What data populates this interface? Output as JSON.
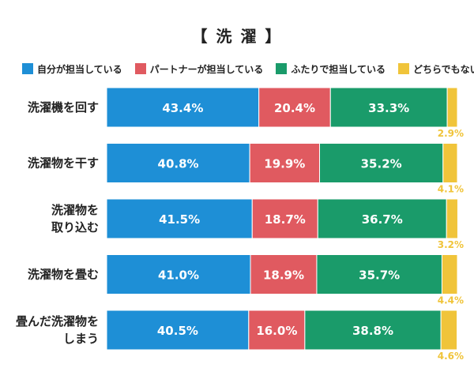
{
  "title": "【 洗 濯 】",
  "legend": [
    {
      "label": "自分が担当している",
      "color": "#1e8fd6"
    },
    {
      "label": "パートナーが担当している",
      "color": "#e05a60"
    },
    {
      "label": "ふたりで担当している",
      "color": "#1a9b6a"
    },
    {
      "label": "どちらでもない",
      "color": "#f0c43a"
    }
  ],
  "chart_data": {
    "type": "bar",
    "orientation": "horizontal",
    "stacked": true,
    "categories": [
      [
        "洗濯機を回す"
      ],
      [
        "洗濯物を干す"
      ],
      [
        "洗濯物を",
        "取り込む"
      ],
      [
        "洗濯物を畳む"
      ],
      [
        "畳んだ洗濯物を",
        "しまう"
      ]
    ],
    "series": [
      {
        "name": "自分が担当している",
        "values": [
          43.4,
          40.8,
          41.5,
          41.0,
          40.5
        ],
        "labels": [
          "43.4%",
          "40.8%",
          "41.5%",
          "41.0%",
          "40.5%"
        ]
      },
      {
        "name": "パートナーが担当している",
        "values": [
          20.4,
          19.9,
          18.7,
          18.9,
          16.0
        ],
        "labels": [
          "20.4%",
          "19.9%",
          "18.7%",
          "18.9%",
          "16.0%"
        ]
      },
      {
        "name": "ふたりで担当している",
        "values": [
          33.3,
          35.2,
          36.7,
          35.7,
          38.8
        ],
        "labels": [
          "33.3%",
          "35.2%",
          "36.7%",
          "35.7%",
          "38.8%"
        ]
      },
      {
        "name": "どちらでもない",
        "values": [
          2.9,
          4.1,
          3.2,
          4.4,
          4.6
        ],
        "labels": [
          "2.9%",
          "4.1%",
          "3.2%",
          "4.4%",
          "4.6%"
        ]
      }
    ],
    "xlim": [
      0,
      100
    ],
    "grid": false,
    "legend_position": "top"
  }
}
